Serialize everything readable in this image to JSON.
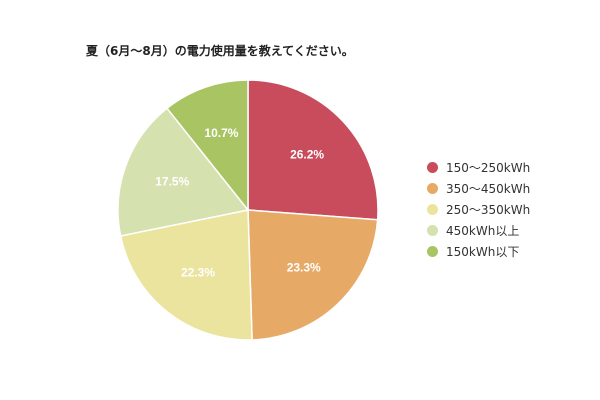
{
  "chart_data": {
    "type": "pie",
    "title": "夏（6月〜8月）の電力使用量を教えてください。",
    "slices": [
      {
        "label": "150〜250kWh",
        "value": 26.2,
        "display": "26.2%",
        "color": "#c84c5b"
      },
      {
        "label": "350〜450kWh",
        "value": 23.3,
        "display": "23.3%",
        "color": "#e6aa66"
      },
      {
        "label": "250〜350kWh",
        "value": 22.3,
        "display": "22.3%",
        "color": "#ebe49f"
      },
      {
        "label": "450kWh以上",
        "value": 17.5,
        "display": "17.5%",
        "color": "#d5e1ae"
      },
      {
        "label": "150kWh以下",
        "value": 10.7,
        "display": "10.7%",
        "color": "#a9c462"
      }
    ],
    "legend_position": "right"
  }
}
